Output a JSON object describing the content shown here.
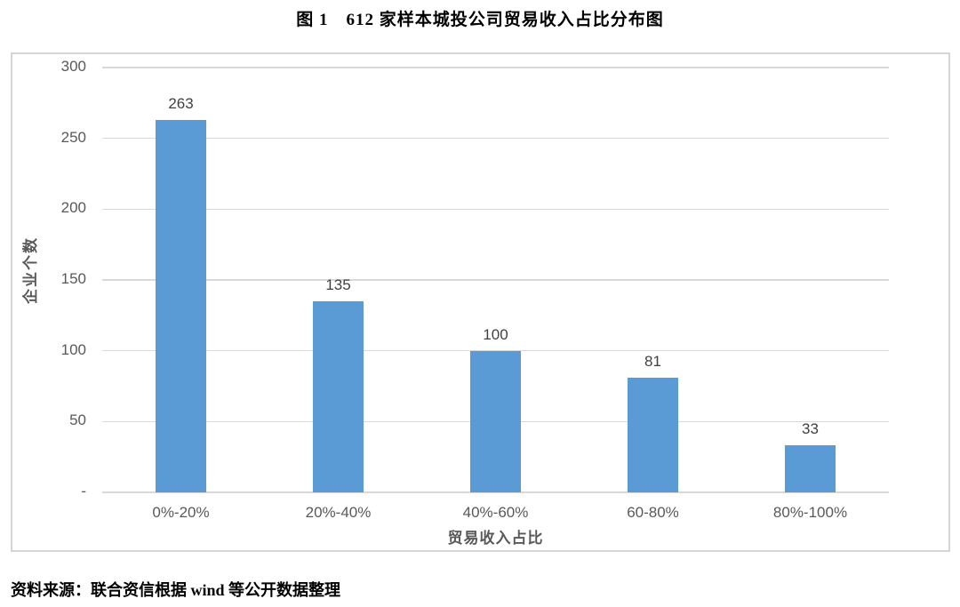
{
  "chart_data": {
    "type": "bar",
    "title": "图 1　612 家样本城投公司贸易收入占比分布图",
    "categories": [
      "0%-20%",
      "20%-40%",
      "40%-60%",
      "60-80%",
      "80%-100%"
    ],
    "values": [
      263,
      135,
      100,
      81,
      33
    ],
    "xlabel": "贸易收入占比",
    "ylabel": "企业个数",
    "ylim": [
      0,
      300
    ],
    "yticks": [
      {
        "label": "300",
        "value": 300
      },
      {
        "label": "250",
        "value": 250
      },
      {
        "label": "200",
        "value": 200
      },
      {
        "label": "150",
        "value": 150
      },
      {
        "label": "100",
        "value": 100
      },
      {
        "label": "50",
        "value": 50
      },
      {
        "label": "-",
        "value": 0
      }
    ],
    "grid": "horizontal",
    "legend": "none",
    "bar_color": "#5b9bd5",
    "gridline_color": "#d9d9d9",
    "axis_text_color": "#595959",
    "data_label_color": "#404040",
    "source": "资料来源：联合资信根据 wind 等公开数据整理"
  }
}
